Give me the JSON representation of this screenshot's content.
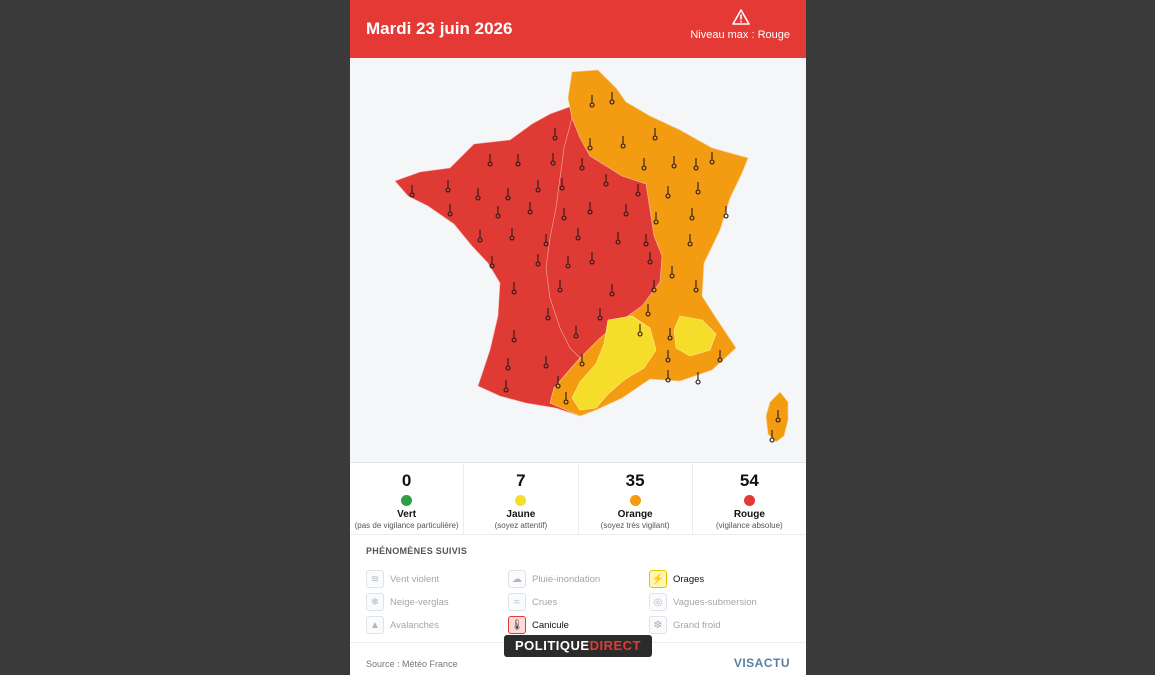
{
  "header": {
    "date": "Mardi 23 juin 2026",
    "niveau": "Niveau max : Rouge",
    "warning_icon": "warning-triangle-icon"
  },
  "colors": {
    "header": "#e53935",
    "rouge": "#e03a34",
    "orange": "#f39c12",
    "jaune": "#f5dd2a",
    "vert": "#2ea043"
  },
  "stats": [
    {
      "count": "0",
      "label": "Vert",
      "sub": "(pas de vigilance particulière)",
      "color": "#2ea043"
    },
    {
      "count": "7",
      "label": "Jaune",
      "sub": "(soyez attentif)",
      "color": "#f5dd2a"
    },
    {
      "count": "35",
      "label": "Orange",
      "sub": "(soyez très vigilant)",
      "color": "#f39c12"
    },
    {
      "count": "54",
      "label": "Rouge",
      "sub": "(vigilance absolue)",
      "color": "#e53935"
    }
  ],
  "phenomenes": {
    "title": "PHÉNOMÈNES SUIVIS",
    "items": [
      {
        "label": "Vent violent",
        "icon": "wind-icon",
        "glyph": "≋"
      },
      {
        "label": "Pluie-inondation",
        "icon": "rain-cloud-icon",
        "glyph": "☁"
      },
      {
        "label": "Orages",
        "icon": "lightning-icon",
        "glyph": "⚡"
      },
      {
        "label": "Neige-verglas",
        "icon": "snowflake-icon",
        "glyph": "❄"
      },
      {
        "label": "Crues",
        "icon": "waves-icon",
        "glyph": "≈"
      },
      {
        "label": "Vagues-submersion",
        "icon": "wave-icon",
        "glyph": "◎"
      },
      {
        "label": "Avalanches",
        "icon": "mountain-icon",
        "glyph": "▲"
      },
      {
        "label": "Canicule",
        "icon": "thermometer-icon",
        "glyph": "🌡"
      },
      {
        "label": "Grand froid",
        "icon": "cold-thermometer-icon",
        "glyph": "❆"
      }
    ]
  },
  "footer": {
    "source": "Source : Météo France",
    "brand": "VISACTU"
  },
  "watermark": {
    "part1": "POLITIQUE",
    "part2": "DIRECT"
  }
}
